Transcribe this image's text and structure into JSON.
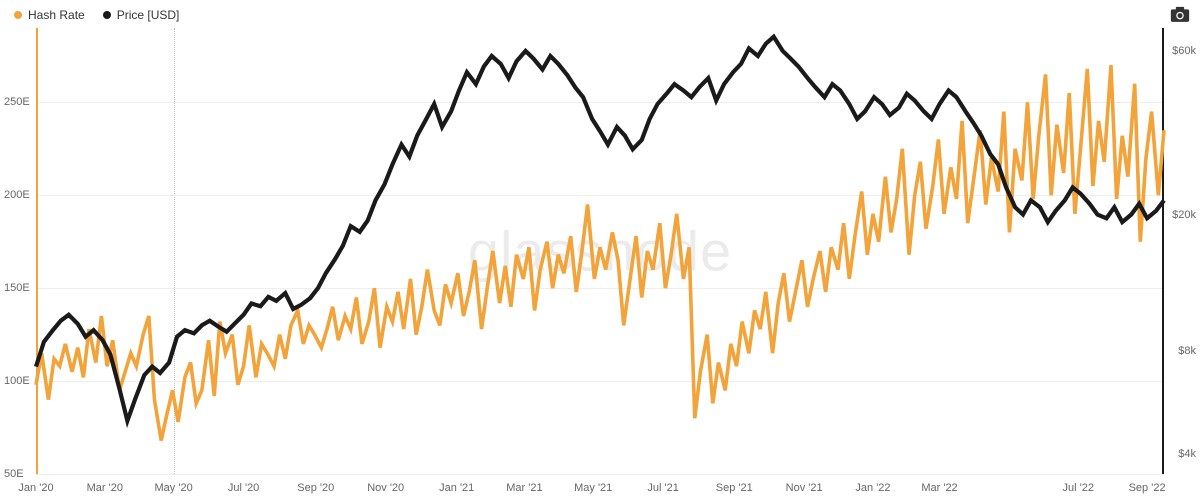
{
  "legend": {
    "items": [
      {
        "label": "Hash Rate",
        "color": "#f2a33a"
      },
      {
        "label": "Price [USD]",
        "color": "#1a1a1a"
      }
    ]
  },
  "watermark": "glassnode",
  "colors": {
    "hash_rate": "#f2a33a",
    "price": "#1a1a1a",
    "grid": "#eeeeee",
    "text": "#666666",
    "background": "#ffffff",
    "vline": "#bbbbbb"
  },
  "chart": {
    "type": "line-dual-axis",
    "x": {
      "labels": [
        "Jan '20",
        "Mar '20",
        "May '20",
        "Jul '20",
        "Sep '20",
        "Nov '20",
        "Jan '21",
        "Mar '21",
        "May '21",
        "Jul '21",
        "Sep '21",
        "Nov '21",
        "Jan '22",
        "Mar '22",
        "Jul '22",
        "Sep '22"
      ],
      "positions": [
        0.0,
        0.061,
        0.122,
        0.184,
        0.248,
        0.31,
        0.373,
        0.433,
        0.494,
        0.556,
        0.619,
        0.681,
        0.742,
        0.801,
        0.924,
        0.985
      ],
      "vline_at": 0.122
    },
    "y_left": {
      "label": "Hash Rate (E)",
      "ticks": [
        50,
        100,
        150,
        200,
        250
      ],
      "min": 50,
      "max": 290,
      "scale": "linear"
    },
    "y_right": {
      "label": "Price USD",
      "ticks_display": [
        "$4k",
        "$8k",
        "$20k",
        "$60k"
      ],
      "ticks_value": [
        4000,
        8000,
        20000,
        60000
      ],
      "min": 3500,
      "max": 70000,
      "scale": "log"
    },
    "series": {
      "hash_rate": {
        "color": "#f2a33a",
        "line_width": 1.2,
        "axis": "left",
        "data": [
          98,
          115,
          90,
          112,
          108,
          120,
          105,
          118,
          102,
          128,
          110,
          135,
          108,
          122,
          95,
          105,
          115,
          108,
          125,
          135,
          90,
          68,
          82,
          95,
          78,
          102,
          110,
          88,
          95,
          122,
          92,
          132,
          115,
          125,
          98,
          108,
          130,
          102,
          120,
          115,
          108,
          125,
          112,
          130,
          138,
          120,
          130,
          125,
          118,
          128,
          140,
          122,
          135,
          128,
          145,
          120,
          132,
          150,
          118,
          140,
          132,
          148,
          128,
          155,
          125,
          140,
          160,
          138,
          130,
          152,
          142,
          158,
          135,
          148,
          165,
          128,
          150,
          170,
          142,
          162,
          140,
          168,
          155,
          172,
          138,
          160,
          175,
          150,
          168,
          158,
          178,
          148,
          170,
          195,
          155,
          172,
          160,
          180,
          165,
          130,
          152,
          178,
          145,
          170,
          160,
          185,
          150,
          168,
          190,
          155,
          172,
          80,
          105,
          125,
          88,
          110,
          95,
          120,
          108,
          132,
          115,
          138,
          128,
          148,
          115,
          142,
          158,
          132,
          150,
          165,
          140,
          155,
          170,
          148,
          172,
          160,
          185,
          155,
          178,
          202,
          168,
          190,
          175,
          210,
          180,
          198,
          225,
          168,
          200,
          218,
          182,
          205,
          230,
          190,
          215,
          198,
          240,
          185,
          212,
          235,
          195,
          220,
          202,
          245,
          180,
          225,
          208,
          250,
          198,
          232,
          265,
          200,
          238,
          212,
          255,
          190,
          225,
          268,
          205,
          240,
          218,
          270,
          198,
          232,
          210,
          260,
          175,
          220,
          245,
          200,
          235
        ],
        "x_positions": [
          0.0,
          0.005,
          0.011,
          0.016,
          0.021,
          0.026,
          0.032,
          0.037,
          0.042,
          0.047,
          0.053,
          0.058,
          0.063,
          0.068,
          0.074,
          0.079,
          0.084,
          0.089,
          0.095,
          0.1,
          0.105,
          0.111,
          0.116,
          0.121,
          0.126,
          0.132,
          0.137,
          0.142,
          0.147,
          0.153,
          0.158,
          0.163,
          0.168,
          0.174,
          0.179,
          0.184,
          0.189,
          0.195,
          0.2,
          0.205,
          0.211,
          0.216,
          0.221,
          0.226,
          0.232,
          0.237,
          0.242,
          0.247,
          0.253,
          0.258,
          0.263,
          0.268,
          0.274,
          0.279,
          0.284,
          0.289,
          0.295,
          0.3,
          0.305,
          0.311,
          0.316,
          0.321,
          0.326,
          0.332,
          0.337,
          0.342,
          0.347,
          0.353,
          0.358,
          0.363,
          0.368,
          0.374,
          0.379,
          0.384,
          0.389,
          0.395,
          0.4,
          0.405,
          0.411,
          0.416,
          0.421,
          0.426,
          0.432,
          0.437,
          0.442,
          0.447,
          0.453,
          0.458,
          0.463,
          0.468,
          0.474,
          0.479,
          0.484,
          0.489,
          0.495,
          0.5,
          0.505,
          0.511,
          0.516,
          0.521,
          0.526,
          0.532,
          0.537,
          0.542,
          0.547,
          0.553,
          0.558,
          0.563,
          0.568,
          0.574,
          0.579,
          0.584,
          0.589,
          0.595,
          0.6,
          0.605,
          0.611,
          0.616,
          0.621,
          0.626,
          0.632,
          0.637,
          0.642,
          0.647,
          0.653,
          0.658,
          0.663,
          0.668,
          0.674,
          0.679,
          0.684,
          0.689,
          0.695,
          0.7,
          0.705,
          0.711,
          0.716,
          0.721,
          0.726,
          0.732,
          0.737,
          0.742,
          0.747,
          0.753,
          0.758,
          0.763,
          0.768,
          0.774,
          0.779,
          0.784,
          0.789,
          0.795,
          0.8,
          0.805,
          0.811,
          0.816,
          0.821,
          0.826,
          0.832,
          0.837,
          0.842,
          0.847,
          0.853,
          0.858,
          0.863,
          0.868,
          0.874,
          0.879,
          0.884,
          0.889,
          0.895,
          0.9,
          0.905,
          0.911,
          0.916,
          0.921,
          0.926,
          0.932,
          0.937,
          0.942,
          0.947,
          0.953,
          0.958,
          0.963,
          0.968,
          0.974,
          0.979,
          0.984,
          0.989,
          0.995,
          1.0
        ]
      },
      "price": {
        "color": "#1a1a1a",
        "line_width": 1.4,
        "axis": "right",
        "data": [
          7200,
          8500,
          9200,
          9800,
          10200,
          9600,
          8800,
          9200,
          8600,
          7800,
          6200,
          5000,
          5800,
          6800,
          7200,
          6900,
          7400,
          8800,
          9200,
          9000,
          9500,
          9800,
          9400,
          9100,
          9600,
          10200,
          11000,
          10800,
          11500,
          11200,
          11800,
          10600,
          10900,
          11400,
          12200,
          13500,
          14800,
          16200,
          18500,
          17800,
          19200,
          22000,
          24500,
          28000,
          32000,
          29500,
          34000,
          38000,
          42000,
          36000,
          40000,
          46000,
          52000,
          48000,
          54000,
          58000,
          55000,
          50000,
          56000,
          60000,
          57000,
          53000,
          58000,
          55000,
          51000,
          47000,
          44000,
          38000,
          35000,
          32000,
          36000,
          34000,
          31000,
          33000,
          38000,
          42000,
          45000,
          48000,
          46000,
          44000,
          47000,
          50000,
          43000,
          48000,
          52000,
          55000,
          61000,
          58000,
          63000,
          66000,
          60000,
          57000,
          54000,
          50000,
          47000,
          44000,
          48000,
          46000,
          42000,
          38000,
          40000,
          44000,
          42000,
          39000,
          41000,
          45000,
          43000,
          40000,
          38000,
          42000,
          46000,
          44000,
          40000,
          37000,
          34000,
          30000,
          28000,
          24000,
          21000,
          20000,
          22000,
          21000,
          19000,
          20500,
          22000,
          24000,
          23000,
          21500,
          20000,
          19500,
          21000,
          19000,
          20000,
          21500,
          19500,
          20500,
          22000
        ],
        "x_positions": [
          0.0,
          0.007,
          0.015,
          0.022,
          0.029,
          0.037,
          0.044,
          0.051,
          0.059,
          0.066,
          0.074,
          0.081,
          0.088,
          0.096,
          0.103,
          0.11,
          0.118,
          0.125,
          0.132,
          0.14,
          0.147,
          0.154,
          0.162,
          0.169,
          0.176,
          0.184,
          0.191,
          0.199,
          0.206,
          0.213,
          0.221,
          0.228,
          0.235,
          0.243,
          0.25,
          0.257,
          0.265,
          0.272,
          0.279,
          0.287,
          0.294,
          0.301,
          0.309,
          0.316,
          0.324,
          0.331,
          0.338,
          0.346,
          0.353,
          0.36,
          0.368,
          0.375,
          0.382,
          0.39,
          0.397,
          0.404,
          0.412,
          0.419,
          0.426,
          0.434,
          0.441,
          0.449,
          0.456,
          0.463,
          0.471,
          0.478,
          0.485,
          0.493,
          0.5,
          0.507,
          0.515,
          0.522,
          0.529,
          0.537,
          0.544,
          0.551,
          0.559,
          0.566,
          0.574,
          0.581,
          0.588,
          0.596,
          0.603,
          0.61,
          0.618,
          0.625,
          0.632,
          0.64,
          0.647,
          0.654,
          0.662,
          0.669,
          0.676,
          0.684,
          0.691,
          0.699,
          0.706,
          0.713,
          0.721,
          0.728,
          0.735,
          0.743,
          0.75,
          0.757,
          0.765,
          0.772,
          0.779,
          0.787,
          0.794,
          0.801,
          0.809,
          0.816,
          0.824,
          0.831,
          0.838,
          0.846,
          0.853,
          0.86,
          0.868,
          0.875,
          0.882,
          0.89,
          0.897,
          0.904,
          0.912,
          0.919,
          0.926,
          0.934,
          0.941,
          0.949,
          0.956,
          0.963,
          0.971,
          0.978,
          0.985,
          0.993,
          1.0
        ]
      }
    }
  }
}
